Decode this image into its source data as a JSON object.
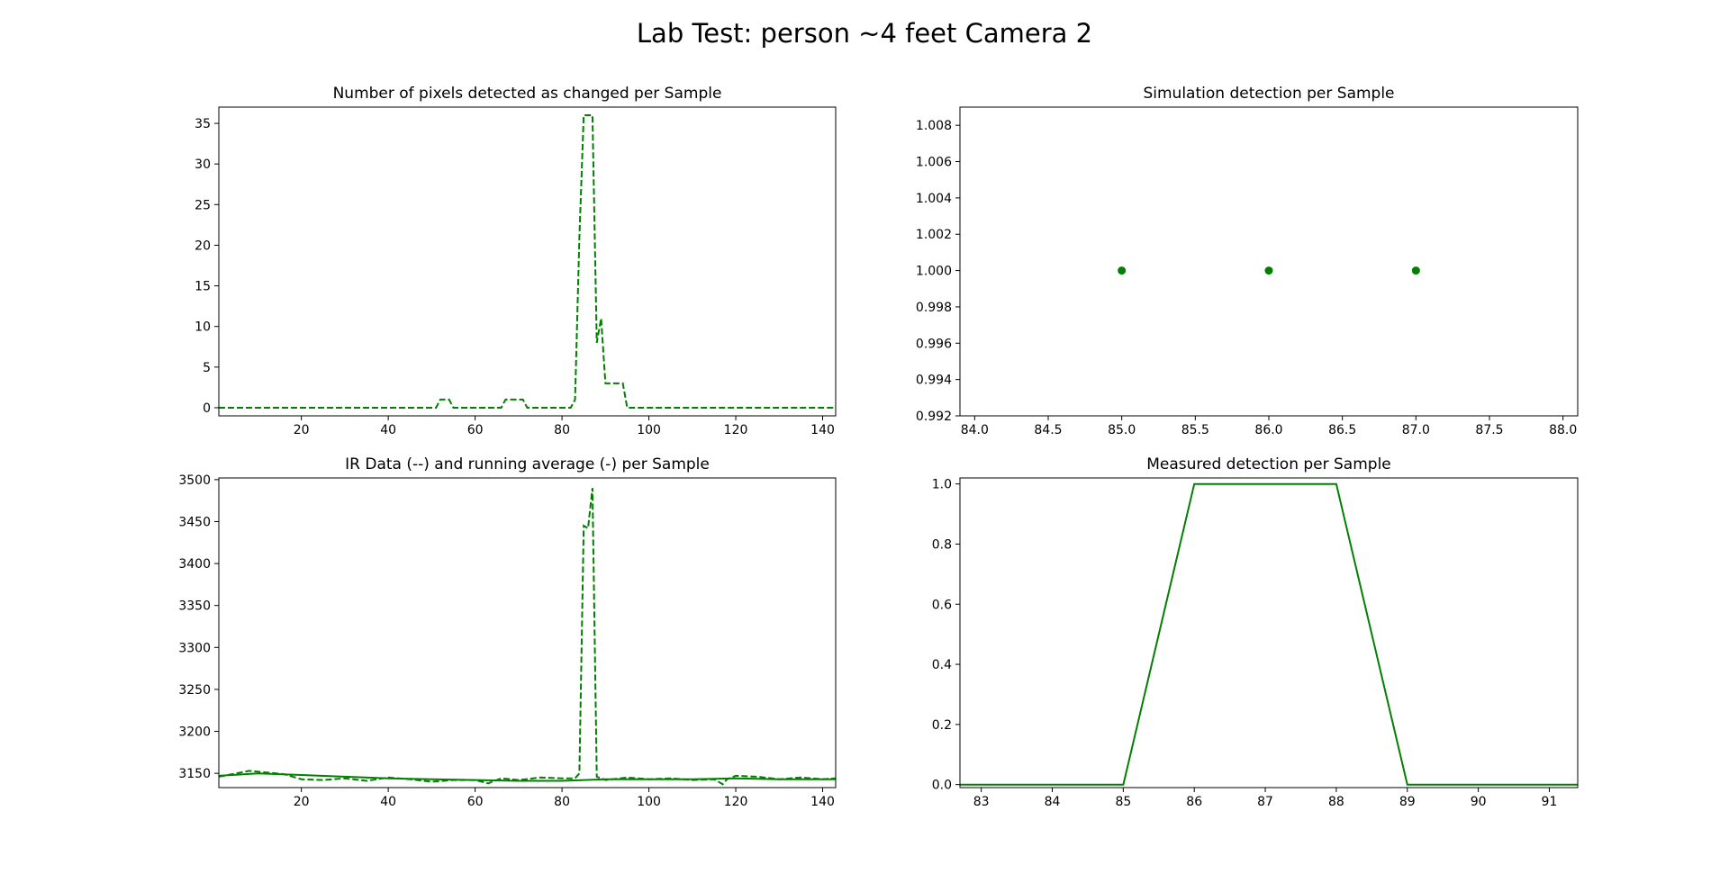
{
  "figure": {
    "title": "Lab Test: person ~4 feet Camera 2"
  },
  "chart_data": [
    {
      "id": "pixels",
      "type": "line",
      "title": "Number of pixels detected as changed per Sample",
      "xlabel": "",
      "ylabel": "",
      "xlim": [
        1,
        143
      ],
      "ylim": [
        -1,
        37
      ],
      "xticks": [
        20,
        40,
        60,
        80,
        100,
        120,
        140
      ],
      "yticks": [
        0,
        5,
        10,
        15,
        20,
        25,
        30,
        35
      ],
      "grid": false,
      "series": [
        {
          "style": "dashed",
          "color": "#008000",
          "x": [
            1,
            51,
            52,
            54,
            55,
            56,
            66,
            67,
            71,
            72,
            82,
            83,
            84,
            85,
            87,
            88,
            89,
            90,
            91,
            94,
            95,
            143
          ],
          "y": [
            0,
            0,
            1,
            1,
            0,
            0,
            0,
            1,
            1,
            0,
            0,
            1,
            21,
            36,
            36,
            8,
            11,
            3,
            3,
            3,
            0,
            0
          ]
        }
      ]
    },
    {
      "id": "simulation",
      "type": "scatter",
      "title": "Simulation detection per Sample",
      "xlabel": "",
      "ylabel": "",
      "xlim": [
        83.9,
        88.1
      ],
      "ylim": [
        0.992,
        1.009
      ],
      "xticks": [
        84.0,
        84.5,
        85.0,
        85.5,
        86.0,
        86.5,
        87.0,
        87.5,
        88.0
      ],
      "xtick_labels": [
        "84.0",
        "84.5",
        "85.0",
        "85.5",
        "86.0",
        "86.5",
        "87.0",
        "87.5",
        "88.0"
      ],
      "yticks": [
        0.992,
        0.994,
        0.996,
        0.998,
        1.0,
        1.002,
        1.004,
        1.006,
        1.008
      ],
      "ytick_labels": [
        "0.992",
        "0.994",
        "0.996",
        "0.998",
        "1.000",
        "1.002",
        "1.004",
        "1.006",
        "1.008"
      ],
      "grid": false,
      "series": [
        {
          "style": "dots",
          "color": "#008000",
          "x": [
            85,
            86,
            87
          ],
          "y": [
            1,
            1,
            1
          ]
        }
      ]
    },
    {
      "id": "ir",
      "type": "line",
      "title": "IR Data (--) and running average (-) per Sample",
      "xlabel": "",
      "ylabel": "",
      "xlim": [
        1,
        143
      ],
      "ylim": [
        3133,
        3502
      ],
      "xticks": [
        20,
        40,
        60,
        80,
        100,
        120,
        140
      ],
      "yticks": [
        3150,
        3200,
        3250,
        3300,
        3350,
        3400,
        3450,
        3500
      ],
      "grid": false,
      "series": [
        {
          "style": "dashed",
          "color": "#008000",
          "x": [
            1,
            5,
            8,
            12,
            16,
            20,
            25,
            30,
            35,
            40,
            45,
            50,
            55,
            60,
            63,
            66,
            70,
            75,
            80,
            83,
            84,
            85,
            86,
            87,
            88,
            90,
            95,
            100,
            105,
            110,
            115,
            117,
            118,
            120,
            125,
            130,
            135,
            140,
            143
          ],
          "y": [
            3146,
            3150,
            3153,
            3151,
            3149,
            3143,
            3142,
            3144,
            3141,
            3145,
            3143,
            3140,
            3142,
            3142,
            3138,
            3144,
            3142,
            3145,
            3144,
            3144,
            3150,
            3445,
            3442,
            3490,
            3146,
            3142,
            3145,
            3143,
            3144,
            3142,
            3143,
            3137,
            3143,
            3147,
            3146,
            3143,
            3145,
            3143,
            3144
          ]
        },
        {
          "style": "solid",
          "color": "#008000",
          "x": [
            1,
            10,
            20,
            30,
            40,
            50,
            60,
            70,
            80,
            90,
            100,
            110,
            120,
            130,
            143
          ],
          "y": [
            3147,
            3150,
            3148,
            3146,
            3144,
            3143,
            3142,
            3141,
            3141,
            3143,
            3143,
            3143,
            3144,
            3143,
            3143
          ]
        }
      ]
    },
    {
      "id": "measured",
      "type": "line",
      "title": "Measured detection per Sample",
      "xlabel": "",
      "ylabel": "",
      "xlim": [
        82.7,
        91.4
      ],
      "ylim": [
        -0.01,
        1.02
      ],
      "xticks": [
        83,
        84,
        85,
        86,
        87,
        88,
        89,
        90,
        91
      ],
      "yticks": [
        0.0,
        0.2,
        0.4,
        0.6,
        0.8,
        1.0
      ],
      "ytick_labels": [
        "0.0",
        "0.2",
        "0.4",
        "0.6",
        "0.8",
        "1.0"
      ],
      "grid": false,
      "series": [
        {
          "style": "solid",
          "color": "#008000",
          "x": [
            82.7,
            85,
            86,
            88,
            89,
            91.4
          ],
          "y": [
            0,
            0,
            1,
            1,
            0,
            0
          ]
        }
      ]
    }
  ]
}
